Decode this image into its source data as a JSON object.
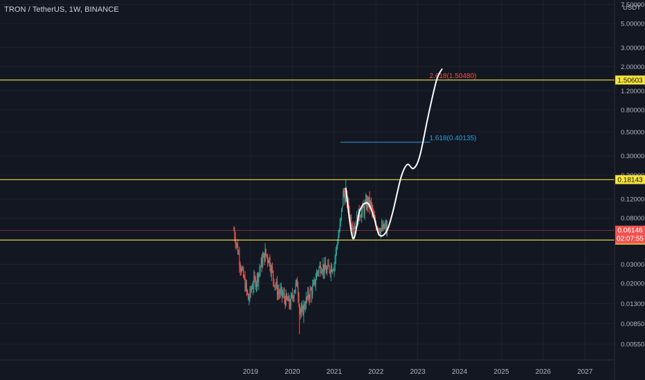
{
  "header": {
    "title": "TRON / TetherUS, 1W, BINANCE"
  },
  "colors": {
    "background": "#131722",
    "grid": "#1e222d",
    "axis_text": "#b2b5be",
    "bull": "#26a69a",
    "bear": "#ef5350",
    "horizontal_level": "#f5e33a",
    "price_line": "#ef5350",
    "projection": "#ffffff",
    "fib_1618": "#2e9ed8",
    "fib_2618": "#ef5350"
  },
  "chart_data": {
    "type": "candlestick",
    "y_scale": "log",
    "y_unit": "USDT",
    "y_ticks": [
      "7.50000",
      "5.00000",
      "3.00000",
      "2.00000",
      "1.20000",
      "0.80000",
      "0.50000",
      "0.30000",
      "0.20000",
      "0.12000",
      "0.08000",
      "0.05000",
      "0.03000",
      "0.02000",
      "0.01300",
      "0.00850",
      "0.00550"
    ],
    "x_ticks": [
      "2019",
      "2020",
      "2021",
      "2022",
      "2023",
      "2024",
      "2025",
      "2026",
      "2027"
    ],
    "horizontal_levels": [
      {
        "label": "1.50603",
        "value": 1.50603
      },
      {
        "label": "0.18143",
        "value": 0.18143
      },
      {
        "label": "0.05018",
        "value": 0.05018
      }
    ],
    "current_price": {
      "label": "0.06146",
      "value": 0.06146,
      "countdown": "02:07:55"
    },
    "fib_annotations": [
      {
        "label": "1.618(0.40135)",
        "value": 0.40135
      },
      {
        "label": "2.618(1.50480)",
        "value": 1.5048
      }
    ],
    "price_path": [
      [
        "2018.60",
        0.062
      ],
      [
        "2018.70",
        0.04
      ],
      [
        "2018.80",
        0.025
      ],
      [
        "2018.88",
        0.019
      ],
      [
        "2018.95",
        0.014
      ],
      [
        "2019.05",
        0.02
      ],
      [
        "2019.15",
        0.022
      ],
      [
        "2019.25",
        0.03
      ],
      [
        "2019.35",
        0.038
      ],
      [
        "2019.45",
        0.033
      ],
      [
        "2019.55",
        0.022
      ],
      [
        "2019.65",
        0.017
      ],
      [
        "2019.75",
        0.016
      ],
      [
        "2019.85",
        0.014
      ],
      [
        "2019.95",
        0.013
      ],
      [
        "2020.05",
        0.018
      ],
      [
        "2020.12",
        0.02
      ],
      [
        "2020.20",
        0.01
      ],
      [
        "2020.30",
        0.013
      ],
      [
        "2020.40",
        0.016
      ],
      [
        "2020.50",
        0.018
      ],
      [
        "2020.60",
        0.026
      ],
      [
        "2020.70",
        0.03
      ],
      [
        "2020.80",
        0.026
      ],
      [
        "2020.90",
        0.028
      ],
      [
        "2021.00",
        0.03
      ],
      [
        "2021.08",
        0.05
      ],
      [
        "2021.15",
        0.07
      ],
      [
        "2021.22",
        0.14
      ],
      [
        "2021.30",
        0.12
      ],
      [
        "2021.40",
        0.075
      ],
      [
        "2021.50",
        0.068
      ],
      [
        "2021.60",
        0.09
      ],
      [
        "2021.70",
        0.095
      ],
      [
        "2021.80",
        0.115
      ],
      [
        "2021.88",
        0.105
      ],
      [
        "2021.95",
        0.075
      ],
      [
        "2022.05",
        0.068
      ],
      [
        "2022.15",
        0.062
      ],
      [
        "2022.22",
        0.066
      ],
      [
        "2022.28",
        0.06146
      ]
    ],
    "projection_path": [
      [
        "2021.28",
        0.15
      ],
      [
        "2021.45",
        0.052
      ],
      [
        "2021.62",
        0.095
      ],
      [
        "2021.80",
        0.11
      ],
      [
        "2021.95",
        0.082
      ],
      [
        "2022.08",
        0.056
      ],
      [
        "2022.25",
        0.06
      ],
      [
        "2022.40",
        0.09
      ],
      [
        "2022.60",
        0.19
      ],
      [
        "2022.75",
        0.25
      ],
      [
        "2022.90",
        0.23
      ],
      [
        "2023.05",
        0.3
      ],
      [
        "2023.25",
        0.7
      ],
      [
        "2023.45",
        1.5
      ],
      [
        "2023.58",
        1.9
      ]
    ]
  }
}
